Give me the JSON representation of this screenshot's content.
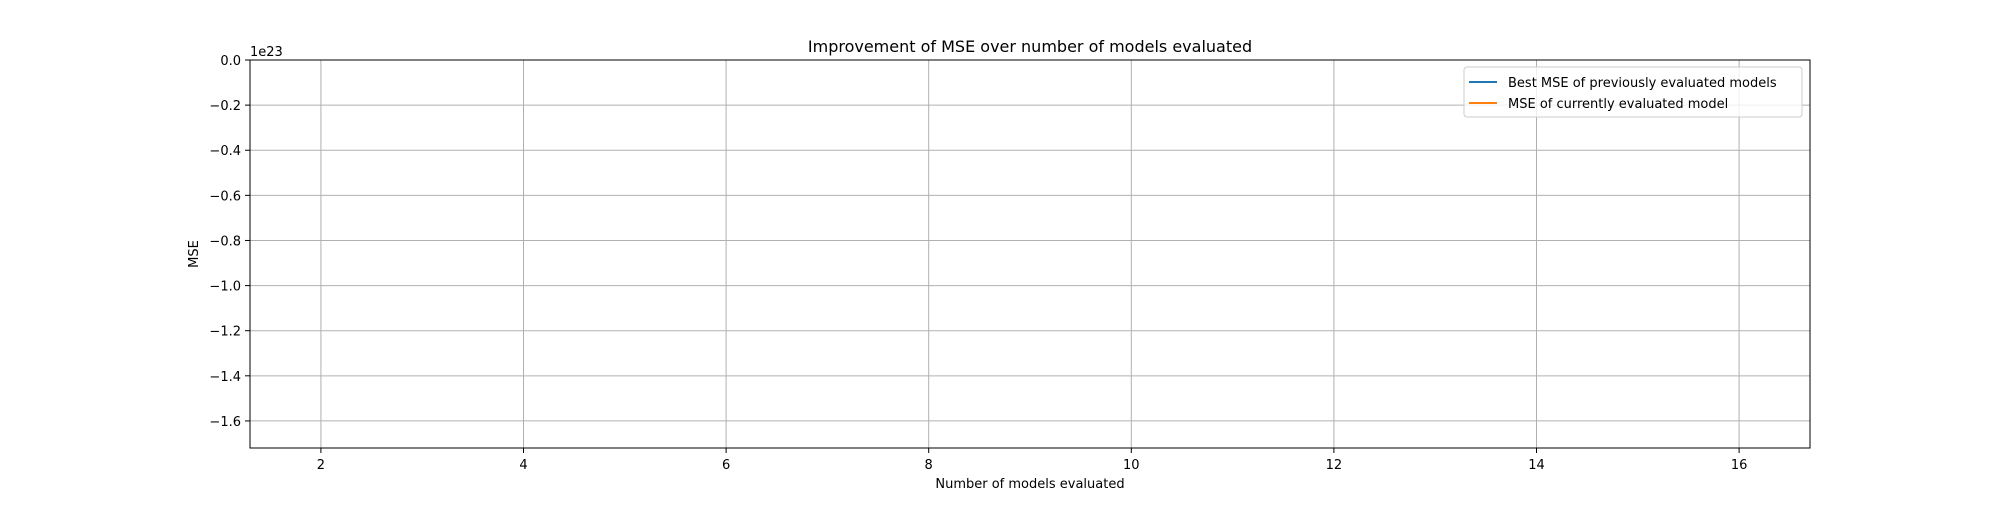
{
  "chart_data": {
    "type": "line",
    "title": "Improvement of MSE over number of models evaluated",
    "xlabel": "Number of models evaluated",
    "ylabel": "MSE",
    "y_offset_label": "1e23",
    "xlim": [
      1.3,
      16.7
    ],
    "ylim": [
      -1.72,
      0.0
    ],
    "x_ticks": [
      2,
      4,
      6,
      8,
      10,
      12,
      14,
      16
    ],
    "y_ticks": [
      0.0,
      -0.2,
      -0.4,
      -0.6,
      -0.8,
      -1.0,
      -1.2,
      -1.4,
      -1.6
    ],
    "x_tick_labels": [
      "2",
      "4",
      "6",
      "8",
      "10",
      "12",
      "14",
      "16"
    ],
    "y_tick_labels": [
      "0.0",
      "−0.2",
      "−0.4",
      "−0.6",
      "−0.8",
      "−1.0",
      "−1.2",
      "−1.4",
      "−1.6"
    ],
    "grid": true,
    "legend_position": "top-right",
    "series": [
      {
        "name": "Best MSE of previously evaluated models",
        "color": "#1f77b4",
        "x": [],
        "y": []
      },
      {
        "name": "MSE of currently evaluated model",
        "color": "#ff7f0e",
        "x": [],
        "y": []
      }
    ]
  }
}
